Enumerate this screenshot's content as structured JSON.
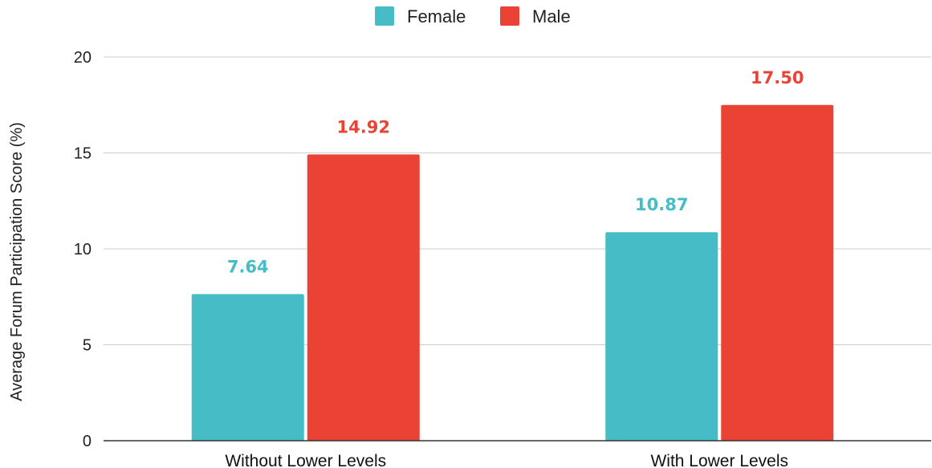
{
  "chart_data": {
    "type": "bar",
    "categories": [
      "Without Lower Levels",
      "With Lower Levels"
    ],
    "series": [
      {
        "name": "Female",
        "color": "#46BDC6",
        "values": [
          7.64,
          10.87
        ],
        "labels": [
          "7.64",
          "10.87"
        ]
      },
      {
        "name": "Male",
        "color": "#EA4335",
        "values": [
          14.92,
          17.5
        ],
        "labels": [
          "14.92",
          "17.50"
        ]
      }
    ],
    "xlabel": "",
    "ylabel": "Average Forum Participation Score (%)",
    "ylim": [
      0,
      20
    ],
    "yticks": [
      0,
      5,
      10,
      15,
      20
    ],
    "ytick_labels": [
      "0",
      "5",
      "10",
      "15",
      "20"
    ],
    "grid": true,
    "legend_position": "top-center"
  }
}
